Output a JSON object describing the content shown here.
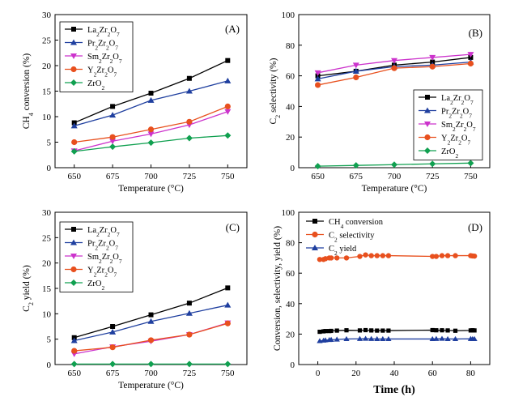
{
  "chart_data": [
    {
      "type": "line",
      "panel": "(A)",
      "xlabel": "Temperature (°C)",
      "ylabel": "CH4 conversion (%)",
      "xlim": [
        637.5,
        762.5
      ],
      "ylim": [
        0,
        30
      ],
      "xticks": [
        650,
        675,
        700,
        725,
        750
      ],
      "yticks": [
        0,
        5,
        10,
        15,
        20,
        25,
        30
      ],
      "legend_position": "top-left",
      "grid": false,
      "series": [
        {
          "name": "La2Zr2O7",
          "color": "#000000",
          "marker": "square",
          "x": [
            650,
            675,
            700,
            725,
            750
          ],
          "y": [
            8.8,
            12.0,
            14.6,
            17.5,
            21.0
          ]
        },
        {
          "name": "Pr2Zr2O7",
          "color": "#1f3f9f",
          "marker": "triangle-up",
          "x": [
            650,
            675,
            700,
            725,
            750
          ],
          "y": [
            8.2,
            10.3,
            13.2,
            15.0,
            17.0
          ]
        },
        {
          "name": "Sm2Zr2O7",
          "color": "#cc33cc",
          "marker": "triangle-down",
          "x": [
            650,
            675,
            700,
            725,
            750
          ],
          "y": [
            3.3,
            5.2,
            6.6,
            8.4,
            11.0
          ]
        },
        {
          "name": "Y2Zr2O7",
          "color": "#e8501e",
          "marker": "circle",
          "x": [
            650,
            675,
            700,
            725,
            750
          ],
          "y": [
            5.0,
            6.0,
            7.5,
            9.0,
            12.0
          ]
        },
        {
          "name": "ZrO2",
          "color": "#10a050",
          "marker": "diamond",
          "x": [
            650,
            675,
            700,
            725,
            750
          ],
          "y": [
            3.2,
            4.1,
            4.9,
            5.8,
            6.3
          ]
        }
      ]
    },
    {
      "type": "line",
      "panel": "(B)",
      "xlabel": "Temperature (°C)",
      "ylabel": "C2 selectivity (%)",
      "xlim": [
        637.5,
        762.5
      ],
      "ylim": [
        0,
        100
      ],
      "xticks": [
        650,
        675,
        700,
        725,
        750
      ],
      "yticks": [
        0,
        20,
        40,
        60,
        80,
        100
      ],
      "legend_position": "bottom-right",
      "grid": false,
      "series": [
        {
          "name": "La2Zr2O7",
          "color": "#000000",
          "marker": "square",
          "x": [
            650,
            675,
            700,
            725,
            750
          ],
          "y": [
            60,
            63,
            67,
            69,
            72
          ]
        },
        {
          "name": "Pr2Zr2O7",
          "color": "#1f3f9f",
          "marker": "triangle-up",
          "x": [
            650,
            675,
            700,
            725,
            750
          ],
          "y": [
            58,
            63,
            66,
            67,
            69
          ]
        },
        {
          "name": "Sm2Zr2O7",
          "color": "#cc33cc",
          "marker": "triangle-down",
          "x": [
            650,
            675,
            700,
            725,
            750
          ],
          "y": [
            62,
            67,
            70,
            72,
            74
          ]
        },
        {
          "name": "Y2Zr2O7",
          "color": "#e8501e",
          "marker": "circle",
          "x": [
            650,
            675,
            700,
            725,
            750
          ],
          "y": [
            54,
            59,
            65,
            66,
            68
          ]
        },
        {
          "name": "ZrO2",
          "color": "#10a050",
          "marker": "diamond",
          "x": [
            650,
            675,
            700,
            725,
            750
          ],
          "y": [
            1.0,
            1.5,
            2.0,
            2.5,
            3.0
          ]
        }
      ]
    },
    {
      "type": "line",
      "panel": "(C)",
      "xlabel": "Temperature (°C)",
      "ylabel": "C2 yield (%)",
      "xlim": [
        637.5,
        762.5
      ],
      "ylim": [
        0,
        30
      ],
      "xticks": [
        650,
        675,
        700,
        725,
        750
      ],
      "yticks": [
        0,
        5,
        10,
        15,
        20,
        25,
        30
      ],
      "legend_position": "top-left",
      "grid": false,
      "series": [
        {
          "name": "La2Zr2O7",
          "color": "#000000",
          "marker": "square",
          "x": [
            650,
            675,
            700,
            725,
            750
          ],
          "y": [
            5.3,
            7.5,
            9.8,
            12.1,
            15.1
          ]
        },
        {
          "name": "Pr2Zr2O7",
          "color": "#1f3f9f",
          "marker": "triangle-up",
          "x": [
            650,
            675,
            700,
            725,
            750
          ],
          "y": [
            4.7,
            6.4,
            8.5,
            10.1,
            11.7
          ]
        },
        {
          "name": "Sm2Zr2O7",
          "color": "#cc33cc",
          "marker": "triangle-down",
          "x": [
            650,
            675,
            700,
            725,
            750
          ],
          "y": [
            2.1,
            3.5,
            4.6,
            5.9,
            8.2
          ]
        },
        {
          "name": "Y2Zr2O7",
          "color": "#e8501e",
          "marker": "circle",
          "x": [
            650,
            675,
            700,
            725,
            750
          ],
          "y": [
            2.7,
            3.4,
            4.8,
            5.9,
            8.1
          ]
        },
        {
          "name": "ZrO2",
          "color": "#10a050",
          "marker": "diamond",
          "x": [
            650,
            675,
            700,
            725,
            750
          ],
          "y": [
            0.1,
            0.1,
            0.1,
            0.1,
            0.1
          ]
        }
      ]
    },
    {
      "type": "line",
      "panel": "(D)",
      "xlabel": "Time (h)",
      "ylabel": "Conversion, selectivity, yield (%)",
      "xlim": [
        -10,
        90
      ],
      "ylim": [
        0,
        100
      ],
      "xticks": [
        0,
        20,
        40,
        60,
        80
      ],
      "yticks": [
        0,
        20,
        40,
        60,
        80,
        100
      ],
      "legend_position": "top-left",
      "grid": false,
      "series": [
        {
          "name": "CH4 conversion",
          "color": "#000000",
          "marker": "square",
          "x": [
            1,
            3,
            4,
            6,
            7,
            10,
            15,
            22,
            25,
            28,
            31,
            34,
            37,
            60,
            62,
            65,
            68,
            72,
            80,
            81,
            82
          ],
          "y": [
            21.5,
            21.8,
            22,
            22,
            22.1,
            22.3,
            22.5,
            22.4,
            22.6,
            22.4,
            22.3,
            22.3,
            22.3,
            22.6,
            22.5,
            22.5,
            22.4,
            22.2,
            22.4,
            22.5,
            22.4
          ]
        },
        {
          "name": "C2 selectivity",
          "color": "#e8501e",
          "marker": "circle",
          "x": [
            1,
            3,
            4,
            6,
            7,
            10,
            15,
            22,
            25,
            28,
            31,
            34,
            37,
            60,
            62,
            65,
            68,
            72,
            80,
            81,
            82
          ],
          "y": [
            69,
            69,
            69.5,
            70,
            70,
            70,
            70,
            71,
            72,
            71.5,
            71.5,
            71.5,
            71.5,
            71,
            71,
            71.5,
            71.5,
            71.5,
            71.5,
            71.3,
            71.2
          ]
        },
        {
          "name": "C2 yield",
          "color": "#1f3f9f",
          "marker": "triangle-up",
          "x": [
            1,
            3,
            4,
            6,
            7,
            10,
            15,
            22,
            25,
            28,
            31,
            34,
            37,
            60,
            62,
            65,
            68,
            72,
            80,
            81,
            82
          ],
          "y": [
            15.5,
            15.8,
            16,
            16.2,
            16.3,
            16.5,
            16.8,
            16.9,
            17,
            16.9,
            16.8,
            16.8,
            16.8,
            16.8,
            16.9,
            17,
            16.8,
            16.8,
            16.9,
            16.8,
            16.8
          ]
        }
      ]
    }
  ]
}
